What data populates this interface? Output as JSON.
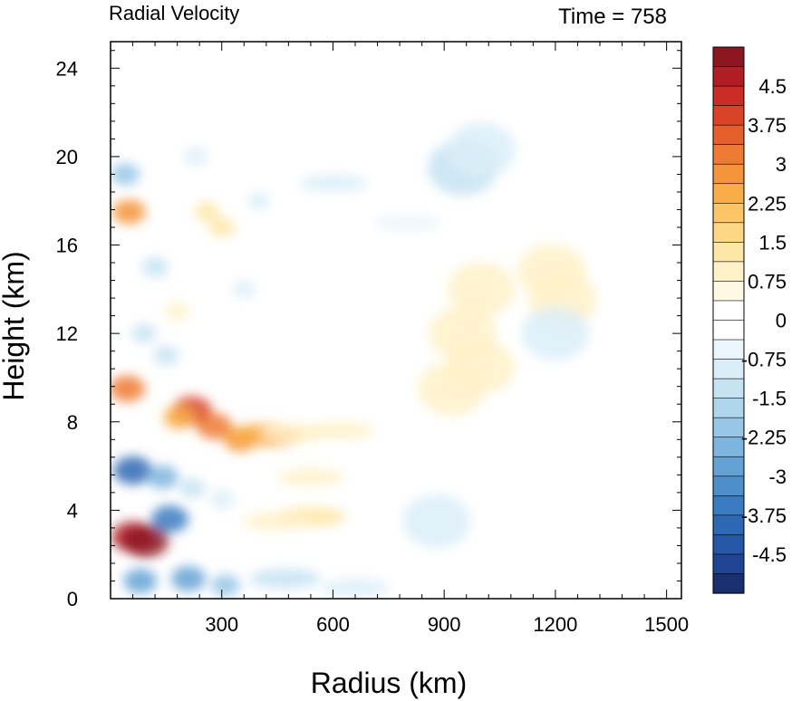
{
  "chart_data": {
    "type": "heatmap",
    "title": "Radial Velocity",
    "subtitle": "Time = 758",
    "xlabel": "Radius (km)",
    "ylabel": "Height (km)",
    "xlim": [
      0,
      1540
    ],
    "ylim": [
      0,
      25.2
    ],
    "x_ticks": [
      300,
      600,
      900,
      1200,
      1500
    ],
    "x_tick_labels": [
      "300",
      "600",
      "900",
      "1200",
      "1500"
    ],
    "y_ticks": [
      0,
      4,
      8,
      12,
      16,
      20,
      24
    ],
    "y_tick_labels": [
      "0",
      "4",
      "8",
      "12",
      "16",
      "20",
      "24"
    ],
    "colorbar": {
      "min": -5.25,
      "max": 5.25,
      "step": 0.375,
      "labels": [
        "4.5",
        "3.75",
        "3",
        "2.25",
        "1.5",
        "0.75",
        "0",
        "-0.75",
        "-1.5",
        "-2.25",
        "-3",
        "-3.75",
        "-4.5"
      ],
      "label_values": [
        4.5,
        3.75,
        3,
        2.25,
        1.5,
        0.75,
        0,
        -0.75,
        -1.5,
        -2.25,
        -3,
        -3.75,
        -4.5
      ],
      "colors": [
        "#1a2f6e",
        "#1f4592",
        "#2557a6",
        "#2d68b4",
        "#3a7bc0",
        "#4d8ecb",
        "#64a2d5",
        "#7db5de",
        "#97c6e6",
        "#afd5ec",
        "#c6e3f2",
        "#daeef8",
        "#ebf6fc",
        "#ffffff",
        "#ffffff",
        "#fff9e3",
        "#fff1c8",
        "#fee6a6",
        "#fdd785",
        "#fcc565",
        "#f9ad48",
        "#f5943a",
        "#ee7a33",
        "#e45f2c",
        "#d94428",
        "#c92d26",
        "#b01d24",
        "#8e1620"
      ]
    },
    "features": [
      {
        "r": 60,
        "z": 2.8,
        "v": 4.5
      },
      {
        "r": 95,
        "z": 2.6,
        "v": 5.0
      },
      {
        "r": 60,
        "z": 5.8,
        "v": -3.8
      },
      {
        "r": 160,
        "z": 3.6,
        "v": -3.5
      },
      {
        "r": 140,
        "z": 5.5,
        "v": -2.5
      },
      {
        "r": 45,
        "z": 9.5,
        "v": 3.2
      },
      {
        "r": 50,
        "z": 17.5,
        "v": 2.8
      },
      {
        "r": 40,
        "z": 19.2,
        "v": -2.0
      },
      {
        "r": 220,
        "z": 8.5,
        "v": 4.0
      },
      {
        "r": 280,
        "z": 7.8,
        "v": 3.2
      },
      {
        "r": 350,
        "z": 7.2,
        "v": 2.8
      },
      {
        "r": 420,
        "z": 7.4,
        "v": 2.4
      },
      {
        "r": 185,
        "z": 8.2,
        "v": 2.5
      },
      {
        "r": 500,
        "z": 7.5,
        "v": 1.0
      },
      {
        "r": 620,
        "z": 7.6,
        "v": 0.8
      },
      {
        "r": 540,
        "z": 3.7,
        "v": 1.4
      },
      {
        "r": 450,
        "z": 3.5,
        "v": 1.0
      },
      {
        "r": 80,
        "z": 0.8,
        "v": -2.8
      },
      {
        "r": 210,
        "z": 0.9,
        "v": -3.0
      },
      {
        "r": 310,
        "z": 0.6,
        "v": -2.0
      },
      {
        "r": 470,
        "z": 0.9,
        "v": -1.4
      },
      {
        "r": 660,
        "z": 0.5,
        "v": -0.8
      },
      {
        "r": 220,
        "z": 5.0,
        "v": -1.5
      },
      {
        "r": 300,
        "z": 4.5,
        "v": -1.0
      },
      {
        "r": 260,
        "z": 17.5,
        "v": 1.2
      },
      {
        "r": 300,
        "z": 16.8,
        "v": 1.4
      },
      {
        "r": 230,
        "z": 20.0,
        "v": -1.0
      },
      {
        "r": 400,
        "z": 18.0,
        "v": -0.8
      },
      {
        "r": 600,
        "z": 18.8,
        "v": -0.8
      },
      {
        "r": 950,
        "z": 19.5,
        "v": -1.2
      },
      {
        "r": 1000,
        "z": 20.3,
        "v": -1.0
      },
      {
        "r": 800,
        "z": 17.0,
        "v": -0.7
      },
      {
        "r": 360,
        "z": 14.0,
        "v": -0.8
      },
      {
        "r": 950,
        "z": 12.0,
        "v": 0.8
      },
      {
        "r": 1000,
        "z": 14.0,
        "v": 0.8
      },
      {
        "r": 1220,
        "z": 13.5,
        "v": 0.9
      },
      {
        "r": 1190,
        "z": 14.8,
        "v": 1.0
      },
      {
        "r": 920,
        "z": 9.5,
        "v": 0.8
      },
      {
        "r": 1000,
        "z": 10.5,
        "v": 0.8
      },
      {
        "r": 1200,
        "z": 12.0,
        "v": -0.8
      },
      {
        "r": 880,
        "z": 3.5,
        "v": -0.8
      },
      {
        "r": 540,
        "z": 5.5,
        "v": 0.8
      },
      {
        "r": 120,
        "z": 15.0,
        "v": -1.5
      },
      {
        "r": 90,
        "z": 12.0,
        "v": -1.2
      },
      {
        "r": 180,
        "z": 13.0,
        "v": 1.0
      },
      {
        "r": 150,
        "z": 11.0,
        "v": -1.3
      }
    ]
  }
}
